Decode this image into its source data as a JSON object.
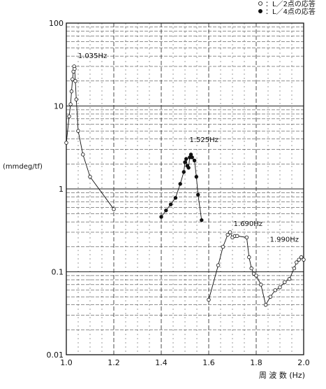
{
  "chart_data": {
    "type": "line",
    "ylabel": "(mmdeg/tf)",
    "xlabel": "周 波 数 (Hz)",
    "yscale": "log",
    "xlim": [
      1.0,
      2.0
    ],
    "ylim": [
      0.01,
      100
    ],
    "x_ticks": [
      "1.0",
      "1.2",
      "1.4",
      "1.6",
      "1.8",
      "2.0"
    ],
    "y_ticks": [
      "0.01",
      "0.1",
      "1",
      "10",
      "100"
    ],
    "grid": true,
    "legend_position": "top-right",
    "series": [
      {
        "name": "：L／2点の応答",
        "marker": "open-circle",
        "points": [
          [
            1.0,
            3.6
          ],
          [
            1.012,
            7.5
          ],
          [
            1.018,
            10.5
          ],
          [
            1.022,
            15
          ],
          [
            1.026,
            21
          ],
          [
            1.03,
            26
          ],
          [
            1.033,
            30
          ],
          [
            1.035,
            28
          ],
          [
            1.038,
            20
          ],
          [
            1.042,
            12
          ],
          [
            1.05,
            5.0
          ],
          [
            1.07,
            2.6
          ],
          [
            1.1,
            1.4
          ],
          [
            1.2,
            0.57
          ]
        ]
      },
      {
        "name": "：L／4点の応答",
        "marker": "filled-circle",
        "points": [
          [
            1.4,
            0.46
          ],
          [
            1.42,
            0.55
          ],
          [
            1.44,
            0.65
          ],
          [
            1.46,
            0.78
          ],
          [
            1.48,
            1.15
          ],
          [
            1.495,
            1.6
          ],
          [
            1.5,
            2.1
          ],
          [
            1.505,
            2.3
          ],
          [
            1.51,
            1.9
          ],
          [
            1.515,
            1.8
          ],
          [
            1.52,
            2.4
          ],
          [
            1.525,
            2.6
          ],
          [
            1.53,
            2.4
          ],
          [
            1.54,
            2.2
          ],
          [
            1.548,
            1.4
          ],
          [
            1.555,
            0.85
          ],
          [
            1.57,
            0.42
          ]
        ]
      },
      {
        "name": "：L／2点の応答",
        "marker": "open-circle",
        "points": [
          [
            1.6,
            0.046
          ],
          [
            1.64,
            0.12
          ],
          [
            1.66,
            0.2
          ],
          [
            1.68,
            0.28
          ],
          [
            1.69,
            0.3
          ],
          [
            1.7,
            0.26
          ],
          [
            1.71,
            0.27
          ],
          [
            1.72,
            0.27
          ],
          [
            1.76,
            0.26
          ],
          [
            1.77,
            0.15
          ],
          [
            1.78,
            0.11
          ],
          [
            1.79,
            0.095
          ],
          [
            1.8,
            0.09
          ],
          [
            1.82,
            0.07
          ],
          [
            1.84,
            0.04
          ],
          [
            1.86,
            0.05
          ],
          [
            1.88,
            0.06
          ],
          [
            1.9,
            0.065
          ],
          [
            1.92,
            0.075
          ],
          [
            1.94,
            0.082
          ],
          [
            1.96,
            0.11
          ],
          [
            1.97,
            0.13
          ],
          [
            1.98,
            0.14
          ],
          [
            1.99,
            0.15
          ],
          [
            2.0,
            0.14
          ]
        ]
      }
    ],
    "annotations": [
      {
        "text": "1.035Hz",
        "x": 1.035,
        "y": 30
      },
      {
        "text": "1.525Hz",
        "x": 1.525,
        "y": 2.6
      },
      {
        "text": "1.690Hz",
        "x": 1.69,
        "y": 0.3
      },
      {
        "text": "1.990Hz",
        "x": 1.99,
        "y": 0.15
      }
    ]
  }
}
